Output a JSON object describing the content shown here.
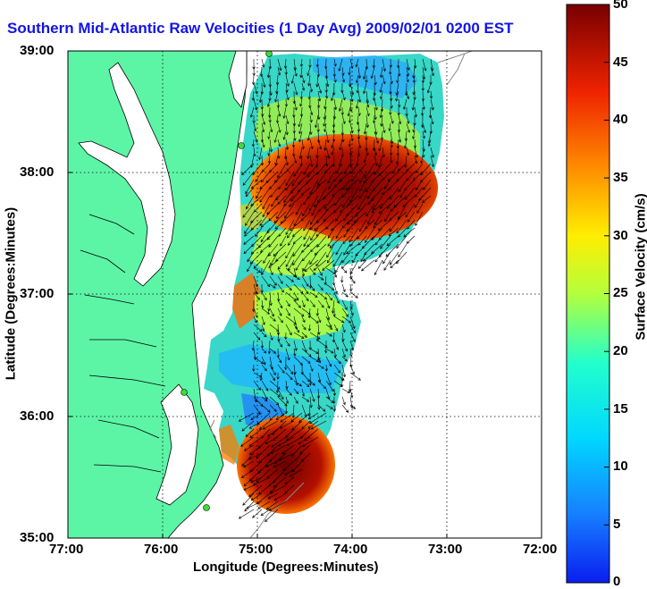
{
  "title": "Southern Mid-Atlantic Raw Velocities (1 Day Avg) 2009/02/01 0200 EST",
  "map": {
    "xlabel": "Longitude (Degrees:Minutes)",
    "ylabel": "Latitude (Degrees:Minutes)",
    "x_ticks": [
      "77:00",
      "76:00",
      "75:00",
      "74:00",
      "73:00",
      "72:00"
    ],
    "y_ticks": [
      "39:00",
      "38:00",
      "37:00",
      "36:00",
      "35:00"
    ],
    "land_color": "#5cf5a6",
    "grid": "dotted"
  },
  "colorbar": {
    "label": "Surface Velocity (cm/s)",
    "min": 0,
    "max": 50,
    "ticks": [
      "0",
      "5",
      "10",
      "15",
      "20",
      "25",
      "30",
      "35",
      "40",
      "45",
      "50"
    ],
    "colormap": "jet"
  }
}
